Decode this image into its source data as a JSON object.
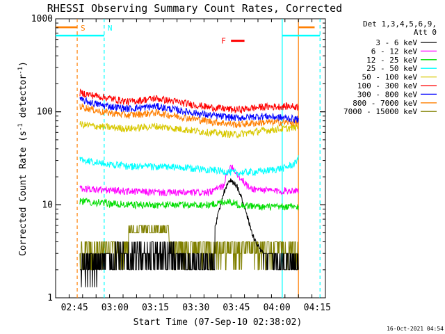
{
  "chart_data": {
    "type": "line",
    "title": "RHESSI Observing Summary Count Rates, Corrected",
    "xlabel": "Start Time (07-Sep-10 02:38:02)",
    "ylabel": "Corrected Count Rate (s⁻¹ detector⁻¹)",
    "ylabel_main": "Corrected Count Rate (s",
    "ylabel_sup1": "-1",
    "ylabel_mid": " detector",
    "ylabel_sup2": "-1",
    "ylabel_end": ")",
    "yscale": "log",
    "ylim": [
      1,
      1000
    ],
    "y_ticks": [
      {
        "value": 1,
        "label": "1"
      },
      {
        "value": 10,
        "label": "10"
      },
      {
        "value": 100,
        "label": "100"
      },
      {
        "value": 1000,
        "label": "1000"
      }
    ],
    "xlim": [
      "02:38",
      "04:18"
    ],
    "x_ticks": [
      "02:45",
      "03:00",
      "03:15",
      "03:30",
      "03:45",
      "04:00",
      "04:15"
    ],
    "date_stamp": "16-Oct-2021 04:54",
    "legend": {
      "header1": "Det 1,3,4,5,6,9,",
      "header2": "Att 0",
      "placement": "right"
    },
    "series": [
      {
        "name": "3 - 6 keV",
        "color": "#000000",
        "pattern": "thermal"
      },
      {
        "name": "6 - 12 keV",
        "color": "#ff00ff",
        "points": [
          [
            "02:47",
            15
          ],
          [
            "02:55",
            14.5
          ],
          [
            "03:05",
            14
          ],
          [
            "03:20",
            13.5
          ],
          [
            "03:35",
            13.5
          ],
          [
            "03:40",
            16
          ],
          [
            "03:43",
            27
          ],
          [
            "03:46",
            20
          ],
          [
            "03:50",
            15
          ],
          [
            "04:00",
            14
          ],
          [
            "04:08",
            14.5
          ]
        ]
      },
      {
        "name": "12 - 25 keV",
        "color": "#00dd00",
        "points": [
          [
            "02:47",
            11
          ],
          [
            "02:55",
            10.5
          ],
          [
            "03:05",
            10
          ],
          [
            "03:20",
            10
          ],
          [
            "03:35",
            10
          ],
          [
            "03:42",
            11
          ],
          [
            "03:46",
            10
          ],
          [
            "03:55",
            9.5
          ],
          [
            "04:08",
            9.5
          ]
        ]
      },
      {
        "name": "25 - 50 keV",
        "color": "#00ffff",
        "points": [
          [
            "02:47",
            31
          ],
          [
            "02:55",
            28
          ],
          [
            "03:05",
            26
          ],
          [
            "03:20",
            25.5
          ],
          [
            "03:35",
            24
          ],
          [
            "03:45",
            22
          ],
          [
            "03:55",
            23
          ],
          [
            "04:03",
            25
          ],
          [
            "04:07",
            28
          ],
          [
            "04:08",
            34
          ]
        ]
      },
      {
        "name": "50 - 100 keV",
        "color": "#d8c800",
        "points": [
          [
            "02:47",
            73
          ],
          [
            "02:55",
            69
          ],
          [
            "03:05",
            66
          ],
          [
            "03:15",
            70
          ],
          [
            "03:25",
            65
          ],
          [
            "03:35",
            60
          ],
          [
            "03:45",
            57
          ],
          [
            "03:55",
            63
          ],
          [
            "04:05",
            67
          ],
          [
            "04:08",
            69
          ]
        ]
      },
      {
        "name": "100 - 300 keV",
        "color": "#ff0000",
        "points": [
          [
            "02:47",
            160
          ],
          [
            "02:55",
            145
          ],
          [
            "03:05",
            128
          ],
          [
            "03:15",
            140
          ],
          [
            "03:25",
            125
          ],
          [
            "03:35",
            112
          ],
          [
            "03:45",
            105
          ],
          [
            "03:55",
            113
          ],
          [
            "04:05",
            115
          ],
          [
            "04:08",
            113
          ]
        ]
      },
      {
        "name": "300 - 800 keV",
        "color": "#0000ff",
        "points": [
          [
            "02:47",
            135
          ],
          [
            "02:55",
            118
          ],
          [
            "03:05",
            108
          ],
          [
            "03:15",
            115
          ],
          [
            "03:25",
            102
          ],
          [
            "03:35",
            92
          ],
          [
            "03:45",
            86
          ],
          [
            "03:55",
            90
          ],
          [
            "04:05",
            85
          ],
          [
            "04:08",
            83
          ]
        ]
      },
      {
        "name": "800 - 7000 keV",
        "color": "#ff7f00",
        "points": [
          [
            "02:47",
            115
          ],
          [
            "02:55",
            100
          ],
          [
            "03:05",
            92
          ],
          [
            "03:15",
            98
          ],
          [
            "03:25",
            88
          ],
          [
            "03:35",
            79
          ],
          [
            "03:45",
            73
          ],
          [
            "03:55",
            77
          ],
          [
            "04:05",
            77
          ],
          [
            "04:08",
            76
          ]
        ]
      },
      {
        "name": "7000 - 15000 keV",
        "color": "#808000",
        "pattern": "noisy"
      }
    ],
    "markers": [
      {
        "label": "S",
        "color": "#ff7f00",
        "time": "02:46",
        "style": "dashed"
      },
      {
        "label": "N",
        "color": "#00ffff",
        "time": "02:56",
        "style": "dashed"
      },
      {
        "label": "",
        "color": "#00ffff",
        "time": "04:02",
        "style": "solid"
      },
      {
        "label": "",
        "color": "#ff7f00",
        "time": "04:08",
        "style": "solid"
      },
      {
        "label": "",
        "color": "#00ffff",
        "time": "04:16",
        "style": "dashed"
      }
    ],
    "flare": {
      "label": "F",
      "color": "#ff0000",
      "start": "03:43",
      "end": "03:48",
      "level": 580
    },
    "bars": [
      {
        "color": "#ff7f00",
        "start": "02:38",
        "end": "02:46",
        "level": 810
      },
      {
        "color": "#ff7f00",
        "start": "04:08",
        "end": "04:14",
        "level": 810
      },
      {
        "color": "#00ffff",
        "start": "02:38",
        "end": "02:56",
        "level": 660
      },
      {
        "color": "#00ffff",
        "start": "04:02",
        "end": "04:16",
        "level": 660
      }
    ]
  }
}
